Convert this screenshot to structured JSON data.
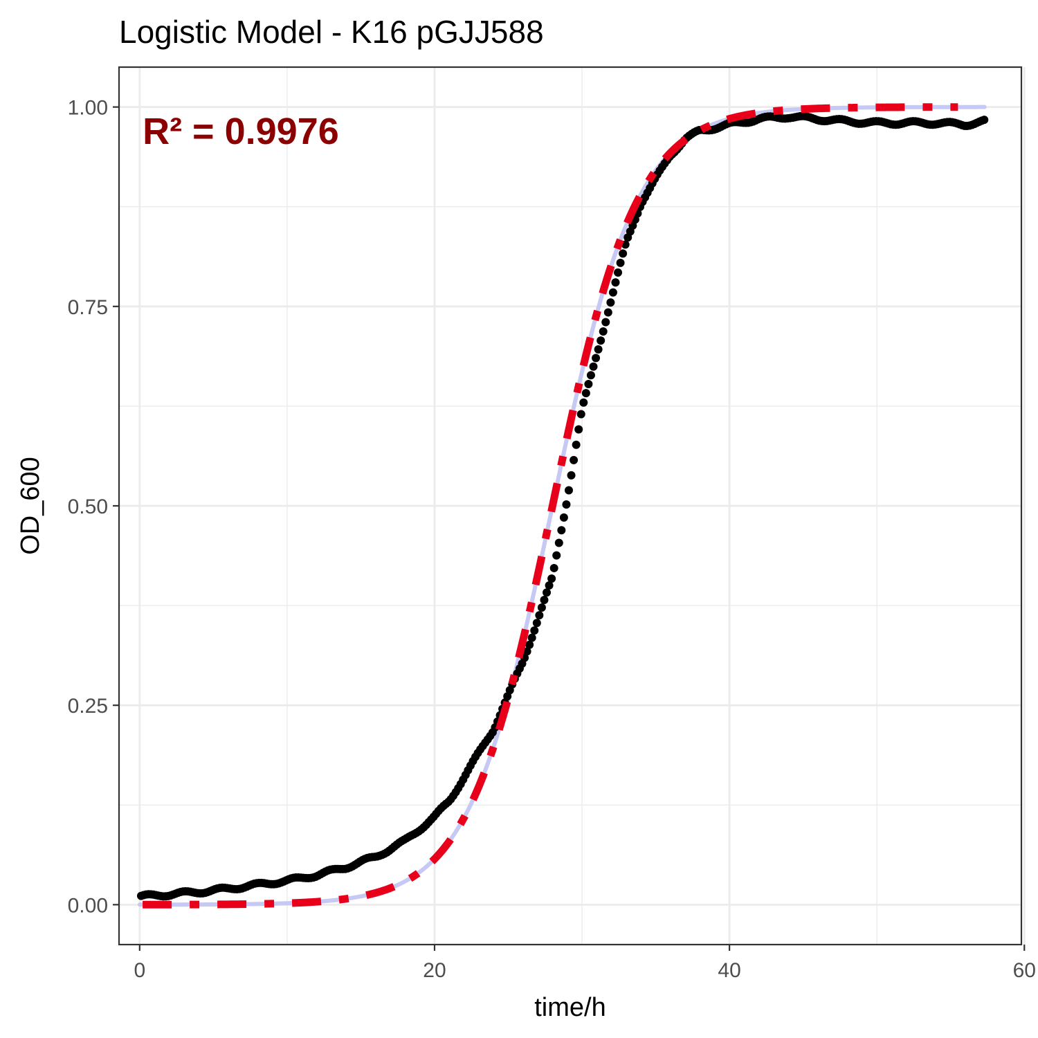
{
  "chart_data": {
    "type": "scatter",
    "title": "Logistic Model -  K16 pGJJ588",
    "xlabel": "time/h",
    "ylabel": "OD_600",
    "xlim": [
      -1.4,
      59.8
    ],
    "ylim": [
      -0.05,
      1.05
    ],
    "x_ticks": [
      0,
      20,
      40,
      60
    ],
    "y_ticks": [
      0.0,
      0.25,
      0.5,
      0.75,
      1.0
    ],
    "x_tick_labels": [
      "0",
      "20",
      "40",
      "60"
    ],
    "y_tick_labels": [
      "0.00",
      "0.25",
      "0.50",
      "0.75",
      "1.00"
    ],
    "x_minor_ticks": [
      10,
      30,
      50
    ],
    "y_minor_ticks": [
      0.125,
      0.375,
      0.625,
      0.875
    ],
    "grid": true,
    "legend": "none",
    "annotation": {
      "text": "R² = 0.9976",
      "x": 0.2,
      "y": 0.965,
      "color": "#8B0000"
    },
    "series": [
      {
        "kind": "points",
        "color": "#000000",
        "x_start": 0.1,
        "x_end": 57.3,
        "x_step": 0.1667,
        "points": [
          [
            0,
            0.01
          ],
          [
            2,
            0.013
          ],
          [
            4,
            0.016
          ],
          [
            6,
            0.02
          ],
          [
            8,
            0.025
          ],
          [
            10,
            0.03
          ],
          [
            12,
            0.037
          ],
          [
            14,
            0.047
          ],
          [
            16,
            0.06
          ],
          [
            18,
            0.08
          ],
          [
            20,
            0.11
          ],
          [
            21,
            0.13
          ],
          [
            22,
            0.16
          ],
          [
            24,
            0.22
          ],
          [
            26,
            0.305
          ],
          [
            28,
            0.41
          ],
          [
            29,
            0.51
          ],
          [
            30,
            0.62
          ],
          [
            31,
            0.69
          ],
          [
            32,
            0.76
          ],
          [
            33,
            0.83
          ],
          [
            34,
            0.88
          ],
          [
            35,
            0.91
          ],
          [
            36,
            0.94
          ],
          [
            37,
            0.96
          ],
          [
            38,
            0.97
          ],
          [
            40,
            0.978
          ],
          [
            42,
            0.985
          ],
          [
            44,
            0.988
          ],
          [
            46,
            0.985
          ],
          [
            48,
            0.982
          ],
          [
            50,
            0.98
          ],
          [
            52,
            0.98
          ],
          [
            54,
            0.98
          ],
          [
            56,
            0.978
          ],
          [
            57.3,
            0.982
          ]
        ]
      },
      {
        "kind": "curve",
        "style": "solid",
        "color": "#c5c9f4",
        "model": "logistic",
        "K": 1.0,
        "r": 0.35,
        "x0": 28.0,
        "x_range": [
          0,
          57.3
        ]
      },
      {
        "kind": "curve",
        "style": "dashed",
        "color": "#e8001a",
        "model": "logistic",
        "K": 1.0,
        "r": 0.35,
        "x0": 28.0,
        "x_range": [
          0.2,
          55.5
        ]
      }
    ]
  }
}
